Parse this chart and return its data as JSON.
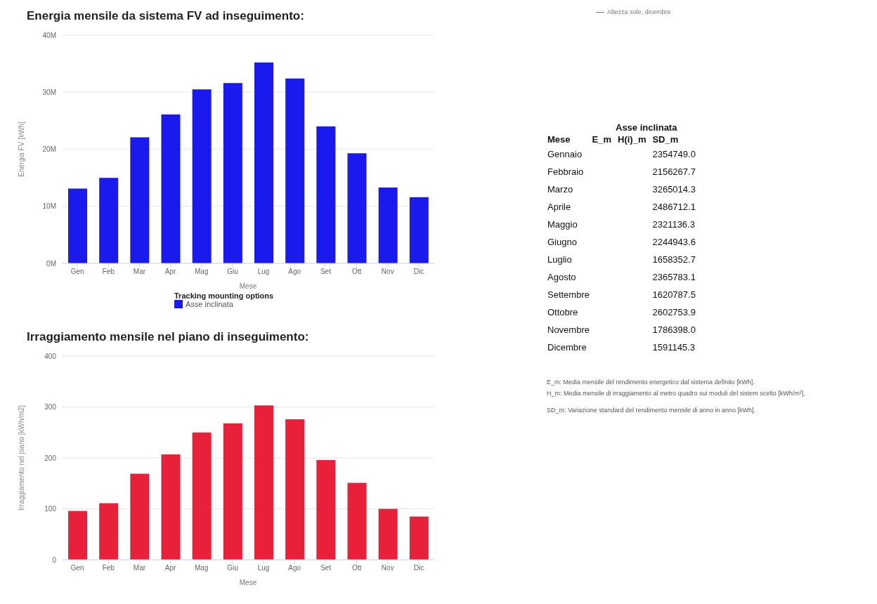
{
  "chart_data": [
    {
      "type": "bar",
      "title": "Energia mensile da sistema FV ad inseguimento:",
      "xlabel": "Mese",
      "ylabel": "Energia FV [kWh]",
      "legend_title": "Tracking mounting options",
      "legend": "bottom",
      "grid": "y",
      "categories": [
        "Gen",
        "Feb",
        "Mar",
        "Apr",
        "Mag",
        "Giu",
        "Lug",
        "Ago",
        "Set",
        "Ott",
        "Nov",
        "Dic"
      ],
      "series": [
        {
          "name": "Asse inclinata",
          "color": "#1a1aee",
          "values": [
            13100000,
            15000000,
            22100000,
            26100000,
            30500000,
            31600000,
            35200000,
            32400000,
            24000000,
            19300000,
            13300000,
            11600000
          ]
        }
      ],
      "ylim": [
        0,
        40000000
      ],
      "yticks": [
        {
          "value": 0,
          "label": "0M"
        },
        {
          "value": 10000000,
          "label": "10M"
        },
        {
          "value": 20000000,
          "label": "20M"
        },
        {
          "value": 30000000,
          "label": "30M"
        },
        {
          "value": 40000000,
          "label": "40M"
        }
      ]
    },
    {
      "type": "bar",
      "title": "Irraggiamento mensile nel piano di inseguimento:",
      "xlabel": "Mese",
      "ylabel": "Irraggiamento nel piano [kWh/m2]",
      "grid": "y",
      "categories": [
        "Gen",
        "Feb",
        "Mar",
        "Apr",
        "Mag",
        "Giu",
        "Lug",
        "Ago",
        "Set",
        "Ott",
        "Nov",
        "Dic"
      ],
      "series": [
        {
          "color": "#e8203a",
          "values": [
            96,
            111,
            169,
            207,
            250,
            268,
            303,
            276,
            196,
            151,
            100,
            85
          ]
        }
      ],
      "ylim": [
        0,
        400
      ],
      "yticks": [
        0,
        100,
        200,
        300,
        400
      ]
    },
    {
      "type": "other",
      "title": "Asse inclinata",
      "xlabel": "Mese",
      "categories": [
        "Gennaio",
        "Febbraio",
        "Marzo",
        "Aprile",
        "Maggio",
        "Giugno",
        "Luglio",
        "Agosto",
        "Settembre",
        "Ottobre",
        "Novembre",
        "Dicembre"
      ],
      "series": [
        {
          "name": "E_m",
          "values": [
            null,
            null,
            null,
            null,
            null,
            null,
            null,
            null,
            null,
            null,
            null,
            null
          ]
        },
        {
          "name": "H(i)_m",
          "values": [
            null,
            null,
            null,
            null,
            null,
            null,
            null,
            null,
            null,
            null,
            null,
            null
          ]
        },
        {
          "name": "SD_m",
          "values": [
            2354749.0,
            2156267.7,
            3265014.3,
            2486712.1,
            2321136.3,
            2244943.6,
            1658352.7,
            2365783.1,
            1620787.5,
            2602753.9,
            1786398.0,
            1591145.3
          ],
          "value_labels": [
            "2354749.0",
            "2156267.7",
            "3265014.3",
            "2486712.1",
            "2321136.3",
            "2244943.6",
            "1658352.7",
            "2365783.1",
            "1620787.5",
            "2602753.9",
            "1786398.0",
            "1591145.3"
          ]
        }
      ],
      "annotations": [
        "Altezza sole, dicembre",
        "E_m: Media mensile del rendimento energetico dal sistema definito [kWh].",
        "H_m: Media mensile di irraggiamento al metro quadro sui moduli del sistem scelto [kWh/m²].",
        "SD_m: Variazione standard del rendimento mensile di anno in anno [kWh]."
      ]
    }
  ]
}
